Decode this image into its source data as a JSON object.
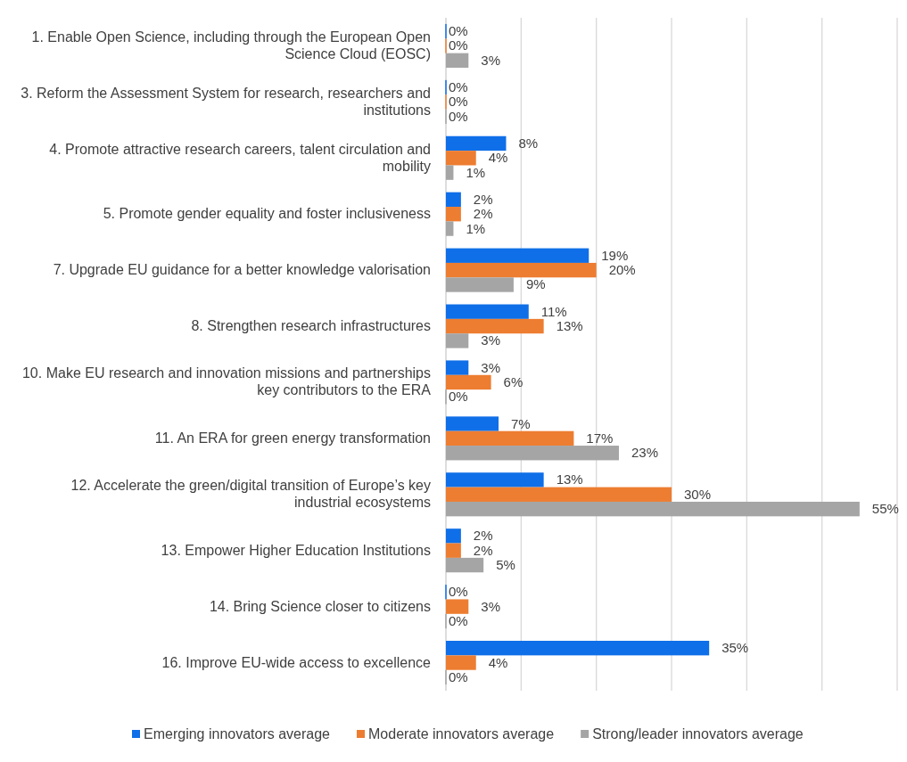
{
  "chart_data": {
    "type": "bar",
    "orientation": "horizontal",
    "categories": [
      "1. Enable Open Science, including through the European Open Science Cloud (EOSC)",
      "3. Reform the Assessment System for research, researchers and institutions",
      "4. Promote attractive research careers, talent circulation and mobility",
      "5. Promote gender equality and foster inclusiveness",
      "7. Upgrade EU guidance for a better knowledge valorisation",
      "8. Strengthen research infrastructures",
      "10. Make EU research and innovation missions and partnerships key contributors to the ERA",
      "11. An ERA for green energy transformation",
      "12. Accelerate the green/digital transition of Europe’s key industrial ecosystems",
      "13. Empower Higher Education Institutions",
      "14. Bring Science closer to citizens",
      "16. Improve EU-wide access to excellence"
    ],
    "series": [
      {
        "name": "Emerging innovators average",
        "color": "#0f6fe8",
        "values": [
          0,
          0,
          8,
          2,
          19,
          11,
          3,
          7,
          13,
          2,
          0,
          35
        ],
        "value_labels": [
          "0%",
          "0%",
          "8%",
          "2%",
          "19%",
          "11%",
          "3%",
          "7%",
          "13%",
          "2%",
          "0%",
          "35%"
        ]
      },
      {
        "name": "Moderate innovators average",
        "color": "#ed7d31",
        "values": [
          0,
          0,
          4,
          2,
          20,
          13,
          6,
          17,
          30,
          2,
          3,
          4
        ],
        "value_labels": [
          "0%",
          "0%",
          "4%",
          "2%",
          "20%",
          "13%",
          "6%",
          "17%",
          "30%",
          "2%",
          "3%",
          "4%"
        ]
      },
      {
        "name": "Strong/leader innovators average",
        "color": "#a5a5a5",
        "values": [
          3,
          0,
          1,
          1,
          9,
          3,
          0,
          23,
          55,
          5,
          0,
          0
        ],
        "value_labels": [
          "3%",
          "0%",
          "1%",
          "1%",
          "9%",
          "3%",
          "0%",
          "23%",
          "55%",
          "5%",
          "0%",
          "0%"
        ]
      }
    ],
    "xlim": [
      0,
      60
    ],
    "xticks": [
      {
        "value": 0,
        "label": null
      },
      {
        "value": 10,
        "label": null
      },
      {
        "value": 20,
        "label": null
      },
      {
        "value": 30,
        "label": null
      },
      {
        "value": 40,
        "label": null
      },
      {
        "value": 50,
        "label": null
      },
      {
        "value": 60,
        "label": null
      }
    ],
    "tick_labels": "y",
    "grid": "x",
    "legend": "bottom"
  }
}
